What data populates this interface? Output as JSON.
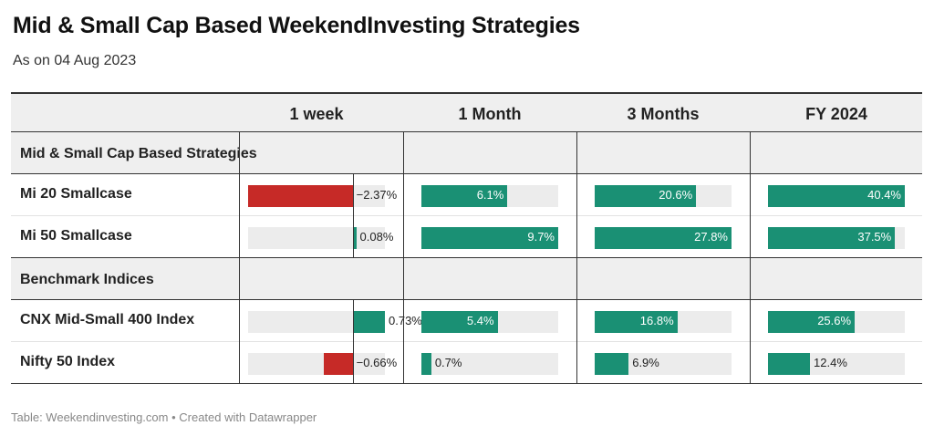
{
  "title": "Mid & Small Cap Based WeekendInvesting Strategies",
  "subtitle": "As on 04 Aug 2023",
  "footer": "Table: Weekendinvesting.com • Created with Datawrapper",
  "colors": {
    "positive": "#1a9074",
    "negative": "#c62a27",
    "track": "#ececec",
    "header_bg": "#efefef"
  },
  "chart_data": {
    "type": "table",
    "columns": [
      "1 week",
      "1 Month",
      "3 Months",
      "FY 2024"
    ],
    "groups": [
      {
        "label": "Mid & Small Cap Based Strategies",
        "rows": [
          {
            "name": "Mi 20 Smallcase",
            "values": [
              -2.37,
              6.1,
              20.6,
              40.4
            ],
            "labels": [
              "−2.37%",
              "6.1%",
              "20.6%",
              "40.4%"
            ]
          },
          {
            "name": "Mi 50 Smallcase",
            "values": [
              0.08,
              9.7,
              27.8,
              37.5
            ],
            "labels": [
              "0.08%",
              "9.7%",
              "27.8%",
              "37.5%"
            ]
          }
        ]
      },
      {
        "label": "Benchmark Indices",
        "rows": [
          {
            "name": "CNX Mid-Small 400 Index",
            "values": [
              0.73,
              5.4,
              16.8,
              25.6
            ],
            "labels": [
              "0.73%",
              "5.4%",
              "16.8%",
              "25.6%"
            ]
          },
          {
            "name": "Nifty 50 Index",
            "values": [
              -0.66,
              0.7,
              6.9,
              12.4
            ],
            "labels": [
              "−0.66%",
              "0.7%",
              "6.9%",
              "12.4%"
            ]
          }
        ]
      }
    ],
    "column_ranges": [
      [
        -2.37,
        0.73
      ],
      [
        0,
        9.7
      ],
      [
        0,
        27.8
      ],
      [
        0,
        40.4
      ]
    ]
  }
}
